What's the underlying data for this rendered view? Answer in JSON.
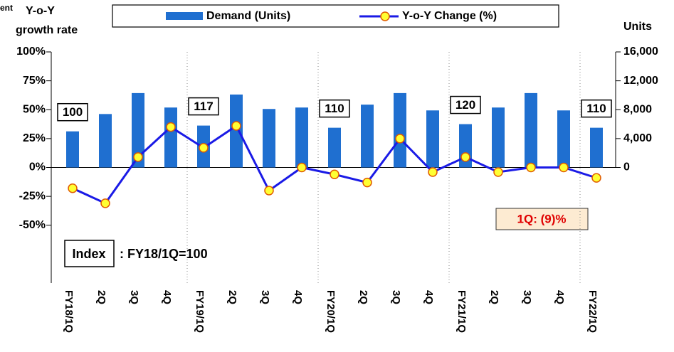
{
  "chart_data": {
    "type": "bar_line",
    "left_axis_title_fragment": "ent",
    "left_axis_title": [
      "Y-o-Y",
      "growth rate"
    ],
    "right_axis_title": "Units",
    "categories": [
      "FY18/1Q",
      "2Q",
      "3Q",
      "4Q",
      "FY19/1Q",
      "2Q",
      "3Q",
      "4Q",
      "FY20/1Q",
      "2Q",
      "3Q",
      "4Q",
      "FY21/1Q",
      "2Q",
      "3Q",
      "4Q",
      "FY22/1Q"
    ],
    "series": [
      {
        "name": "Demand (Units)",
        "color": "#1f6fd0",
        "axis": "y2",
        "kind": "bar",
        "values": [
          5000,
          7400,
          10300,
          8300,
          5800,
          10100,
          8100,
          8300,
          5500,
          8700,
          10300,
          7900,
          6000,
          8300,
          10300,
          7900,
          5500
        ]
      },
      {
        "name": "Y-o-Y Change (%)",
        "color": "#1a1ae6",
        "marker_color": "#ffff33",
        "marker_edge": "#e05a00",
        "kind": "line",
        "values": [
          -18,
          -31,
          9,
          35,
          17,
          36,
          -20,
          0,
          -6,
          -13,
          25,
          -4,
          9,
          -4,
          0,
          0,
          -9
        ]
      }
    ],
    "ylim": [
      -100,
      100
    ],
    "yticks": [
      {
        "value": 100,
        "label": "100%"
      },
      {
        "value": 75,
        "label": "75%"
      },
      {
        "value": 50,
        "label": "50%"
      },
      {
        "value": 25,
        "label": "25%"
      },
      {
        "value": 0,
        "label": "0%"
      },
      {
        "value": -25,
        "label": "-25%"
      },
      {
        "value": -50,
        "label": "-50%"
      }
    ],
    "y2lim": [
      -16000,
      16000
    ],
    "y2ticks": [
      {
        "value": 16000,
        "label": "16,000"
      },
      {
        "value": 12000,
        "label": "12,000"
      },
      {
        "value": 8000,
        "label": "8,000"
      },
      {
        "value": 4000,
        "label": "4,000"
      },
      0
    ],
    "index_annotations": [
      {
        "category": 0,
        "value": 100
      },
      {
        "category": 4,
        "value": 117
      },
      {
        "category": 8,
        "value": 110
      },
      {
        "category": 12,
        "value": 120
      },
      {
        "category": 16,
        "value": 110
      }
    ],
    "callout": "1Q: (9)%",
    "index_note": {
      "label": "Index",
      "text": ": FY18/1Q=100"
    }
  }
}
